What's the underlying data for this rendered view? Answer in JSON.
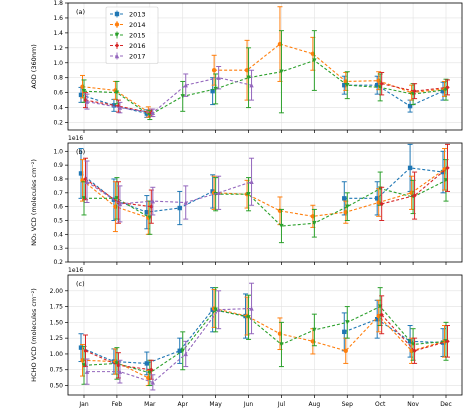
{
  "figure": {
    "months": [
      "Jan",
      "Feb",
      "Mar",
      "Apr",
      "May",
      "Jun",
      "Jul",
      "Aug",
      "Sep",
      "Oct",
      "Nov",
      "Dec"
    ]
  },
  "legend": {
    "placement": "top-left of panel (a)",
    "years": [
      "2013",
      "2014",
      "2015",
      "2016",
      "2017"
    ],
    "colors": {
      "2013": "#1f77b4",
      "2014": "#ff7f0e",
      "2015": "#2ca02c",
      "2016": "#d62728",
      "2017": "#9467bd"
    },
    "markers": {
      "2013": "square",
      "2014": "circle",
      "2015": "triangle-down",
      "2016": "diamond",
      "2017": "triangle-up"
    }
  },
  "chart_data": [
    {
      "type": "line",
      "panel_label": "(a)",
      "ylabel": "AOD (360nm)",
      "offset_text": "",
      "ylim": [
        0.1,
        1.8
      ],
      "yticks": [
        0.2,
        0.4,
        0.6,
        0.8,
        1.0,
        1.2,
        1.4,
        1.6,
        1.8
      ],
      "yticklabels": [
        "0.2",
        "0.4",
        "0.6",
        "0.8",
        "1.0",
        "1.2",
        "1.4",
        "1.6",
        "1.8"
      ],
      "grid": true,
      "error_bars": true,
      "x": [
        "Jan",
        "Feb",
        "Mar",
        "Apr",
        "May",
        "Jun",
        "Jul",
        "Aug",
        "Sep",
        "Oct",
        "Nov",
        "Dec"
      ],
      "series": [
        {
          "name": "2013",
          "values": [
            0.57,
            0.43,
            0.32,
            null,
            0.62,
            null,
            null,
            null,
            0.7,
            0.7,
            0.42,
            0.62
          ],
          "errors": [
            0.1,
            0.08,
            0.05,
            null,
            0.18,
            null,
            null,
            null,
            0.12,
            0.12,
            0.08,
            0.12
          ]
        },
        {
          "name": "2014",
          "values": [
            0.68,
            0.63,
            0.34,
            null,
            0.9,
            0.9,
            1.25,
            1.12,
            0.75,
            0.76,
            0.6,
            0.65
          ],
          "errors": [
            0.15,
            0.12,
            0.07,
            null,
            0.2,
            0.4,
            0.5,
            0.22,
            0.12,
            0.12,
            0.1,
            0.1
          ]
        },
        {
          "name": "2015",
          "values": [
            0.62,
            0.6,
            0.3,
            0.55,
            0.65,
            0.8,
            0.88,
            1.03,
            0.7,
            0.67,
            0.58,
            0.64
          ],
          "errors": [
            0.15,
            0.15,
            0.06,
            0.2,
            0.2,
            0.4,
            0.55,
            0.4,
            0.18,
            0.18,
            0.14,
            0.14
          ]
        },
        {
          "name": "2016",
          "values": [
            0.5,
            0.42,
            0.33,
            null,
            null,
            null,
            null,
            null,
            null,
            0.72,
            0.62,
            0.67
          ],
          "errors": [
            0.1,
            0.08,
            0.05,
            null,
            null,
            null,
            null,
            null,
            null,
            0.15,
            0.1,
            0.1
          ]
        },
        {
          "name": "2017",
          "values": [
            0.48,
            0.4,
            0.33,
            0.7,
            0.8,
            0.7,
            null,
            null,
            null,
            null,
            null,
            null
          ],
          "errors": [
            0.1,
            0.07,
            0.05,
            0.15,
            0.15,
            0.2,
            null,
            null,
            null,
            null,
            null,
            null
          ]
        }
      ]
    },
    {
      "type": "line",
      "panel_label": "(b)",
      "ylabel": "NO₂ VCD (molecules cm⁻²)",
      "offset_text": "1e16",
      "ylim": [
        0.2,
        1.06
      ],
      "yticks": [
        0.2,
        0.3,
        0.4,
        0.5,
        0.6,
        0.7,
        0.8,
        0.9,
        1.0
      ],
      "yticklabels": [
        "0.2",
        "0.3",
        "0.4",
        "0.5",
        "0.6",
        "0.7",
        "0.8",
        "0.9",
        "1.0"
      ],
      "grid": true,
      "error_bars": true,
      "x": [
        "Jan",
        "Feb",
        "Mar",
        "Apr",
        "May",
        "Jun",
        "Jul",
        "Aug",
        "Sep",
        "Oct",
        "Nov",
        "Dec"
      ],
      "series": [
        {
          "name": "2013",
          "values": [
            0.84,
            0.65,
            0.56,
            0.59,
            0.71,
            null,
            null,
            null,
            0.66,
            0.66,
            0.88,
            0.85
          ],
          "errors": [
            0.18,
            0.15,
            0.12,
            0.12,
            0.12,
            null,
            null,
            null,
            0.12,
            0.12,
            0.17,
            0.15
          ]
        },
        {
          "name": "2014",
          "values": [
            0.79,
            0.6,
            0.52,
            null,
            0.7,
            0.69,
            0.57,
            0.53,
            0.56,
            0.63,
            0.7,
            0.87
          ],
          "errors": [
            0.15,
            0.18,
            0.12,
            null,
            0.12,
            0.1,
            0.1,
            0.08,
            0.08,
            0.1,
            0.12,
            0.15
          ]
        },
        {
          "name": "2015",
          "values": [
            0.66,
            0.66,
            0.52,
            null,
            0.69,
            0.69,
            0.46,
            0.48,
            0.6,
            0.73,
            0.67,
            0.79
          ],
          "errors": [
            0.12,
            0.15,
            0.12,
            null,
            0.12,
            0.12,
            0.12,
            0.1,
            0.1,
            0.12,
            0.12,
            0.15
          ]
        },
        {
          "name": "2016",
          "values": [
            0.8,
            0.63,
            0.6,
            null,
            null,
            null,
            null,
            null,
            null,
            0.62,
            0.68,
            0.88
          ],
          "errors": [
            0.15,
            0.15,
            0.12,
            null,
            null,
            null,
            null,
            null,
            null,
            0.12,
            0.17,
            0.17
          ]
        },
        {
          "name": "2017",
          "values": [
            0.78,
            0.62,
            0.64,
            0.63,
            0.7,
            0.78,
            null,
            null,
            null,
            null,
            null,
            null
          ],
          "errors": [
            0.15,
            0.13,
            0.1,
            0.12,
            0.12,
            0.17,
            null,
            null,
            null,
            null,
            null,
            null
          ]
        }
      ]
    },
    {
      "type": "line",
      "panel_label": "(c)",
      "ylabel": "HCHO VCD (molecules cm⁻²)",
      "offset_text": "1e16",
      "ylim": [
        0.35,
        2.25
      ],
      "yticks": [
        0.5,
        0.75,
        1.0,
        1.25,
        1.5,
        1.75,
        2.0
      ],
      "yticklabels": [
        "0.50",
        "0.75",
        "1.00",
        "1.25",
        "1.50",
        "1.75",
        "2.00"
      ],
      "grid": true,
      "error_bars": true,
      "x": [
        "Jan",
        "Feb",
        "Mar",
        "Apr",
        "May",
        "Jun",
        "Jul",
        "Aug",
        "Sep",
        "Oct",
        "Nov",
        "Dec"
      ],
      "series": [
        {
          "name": "2013",
          "values": [
            1.1,
            0.88,
            0.85,
            1.05,
            1.7,
            1.6,
            null,
            null,
            1.35,
            1.55,
            1.2,
            1.18
          ],
          "errors": [
            0.22,
            0.2,
            0.18,
            0.2,
            0.35,
            0.35,
            null,
            null,
            0.3,
            0.3,
            0.25,
            0.22
          ]
        },
        {
          "name": "2014",
          "values": [
            0.9,
            0.88,
            0.62,
            null,
            1.72,
            1.6,
            1.32,
            1.2,
            1.05,
            1.6,
            1.05,
            1.2
          ],
          "errors": [
            0.25,
            0.2,
            0.12,
            null,
            0.3,
            0.3,
            0.25,
            0.2,
            0.2,
            0.25,
            0.2,
            0.25
          ]
        },
        {
          "name": "2015",
          "values": [
            0.82,
            0.85,
            0.7,
            1.05,
            1.7,
            1.58,
            1.15,
            1.38,
            1.5,
            1.75,
            1.15,
            1.2
          ],
          "errors": [
            0.3,
            0.25,
            0.2,
            0.3,
            0.35,
            0.35,
            0.35,
            0.25,
            0.25,
            0.3,
            0.25,
            0.3
          ]
        },
        {
          "name": "2016",
          "values": [
            1.05,
            0.82,
            0.75,
            null,
            null,
            null,
            null,
            null,
            null,
            1.62,
            1.05,
            1.2
          ],
          "errors": [
            0.25,
            0.2,
            0.15,
            null,
            null,
            null,
            null,
            null,
            null,
            0.3,
            0.2,
            0.25
          ]
        },
        {
          "name": "2017",
          "values": [
            0.72,
            0.72,
            0.55,
            1.0,
            1.7,
            1.72,
            null,
            null,
            null,
            null,
            null,
            null
          ],
          "errors": [
            0.2,
            0.18,
            0.12,
            0.2,
            0.3,
            0.4,
            null,
            null,
            null,
            null,
            null,
            null
          ]
        }
      ]
    }
  ]
}
